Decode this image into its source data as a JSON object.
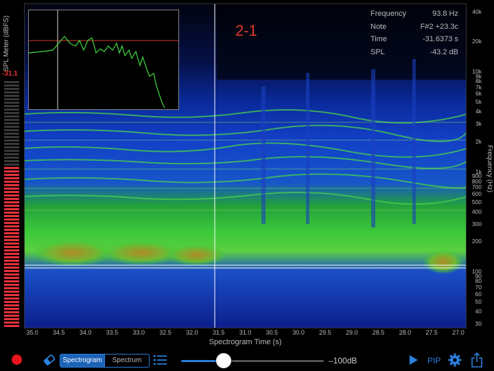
{
  "spl_meter": {
    "title": "SPL Meter (dBFS)",
    "value": "-31.1",
    "level_fraction": 0.65
  },
  "readout": {
    "rows": [
      {
        "label": "Frequency",
        "value": "93.8 Hz"
      },
      {
        "label": "Note",
        "value": "F#2 +23.3c"
      },
      {
        "label": "Time",
        "value": "-31.6373 s"
      },
      {
        "label": "SPL",
        "value": "-43.2 dB"
      }
    ]
  },
  "marker_label": "2-1",
  "frequency_axis": {
    "title": "Frequency (Hz)",
    "ticks": [
      "40k",
      "20k",
      "10k",
      "9k",
      "8k",
      "7k",
      "6k",
      "5k",
      "4k",
      "3k",
      "2k",
      "1k",
      "900",
      "800",
      "700",
      "600",
      "500",
      "400",
      "300",
      "200",
      "100",
      "90",
      "80",
      "70",
      "60",
      "50",
      "40",
      "30"
    ]
  },
  "time_axis": {
    "title": "Spectrogram Time (s)",
    "ticks": [
      "35.0",
      "34.5",
      "34.0",
      "33.5",
      "33.0",
      "32.5",
      "32.0",
      "31.5",
      "31.0",
      "30.5",
      "30.0",
      "29.5",
      "29.0",
      "28.5",
      "28.0",
      "27.5",
      "27.0"
    ]
  },
  "toolbar": {
    "tabs": [
      {
        "label": "Spectrogram",
        "selected": true
      },
      {
        "label": "Spectrum",
        "selected": false
      }
    ],
    "floor_label": "–100dB",
    "pip_label": "PIP",
    "slider_fraction": 0.3
  },
  "icons": {
    "record": "record-icon",
    "eraser": "eraser-icon",
    "list": "list-icon",
    "play": "play-icon",
    "settings": "gear-icon",
    "share": "share-icon"
  },
  "colors": {
    "accent": "#2a7fdc",
    "record": "#e8161c",
    "marker": "#e23a2a",
    "spectrum": "#3fdc3f"
  }
}
